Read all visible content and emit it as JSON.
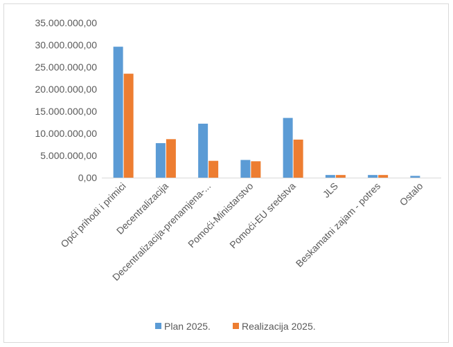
{
  "chart_data": {
    "type": "bar",
    "title": "",
    "xlabel": "",
    "ylabel": "",
    "categories": [
      "Opći prihodi i primici",
      "Decentralizacija",
      "Decentralizacija-prenamjena-...",
      "Pomoći-Ministarstvo",
      "Pomoći-EU sredstva",
      "JLS",
      "Beskamatni zajam - potres",
      "Ostalo"
    ],
    "series": [
      {
        "name": "Plan 2025.",
        "color": "#5b9bd5",
        "values": [
          29600000,
          7800000,
          12200000,
          4000000,
          13500000,
          600000,
          600000,
          400000
        ]
      },
      {
        "name": "Realizacija 2025.",
        "color": "#ed7d31",
        "values": [
          23500000,
          8700000,
          3800000,
          3700000,
          8600000,
          600000,
          600000,
          0
        ]
      }
    ],
    "ylim": [
      0,
      35000000
    ],
    "yticks": [
      0,
      5000000,
      10000000,
      15000000,
      20000000,
      25000000,
      30000000,
      35000000
    ],
    "ytick_labels": [
      "0,00",
      "5.000.000,00",
      "10.000.000,00",
      "15.000.000,00",
      "20.000.000,00",
      "25.000.000,00",
      "30.000.000,00",
      "35.000.000,00"
    ],
    "grid": false,
    "legend_position": "bottom"
  }
}
